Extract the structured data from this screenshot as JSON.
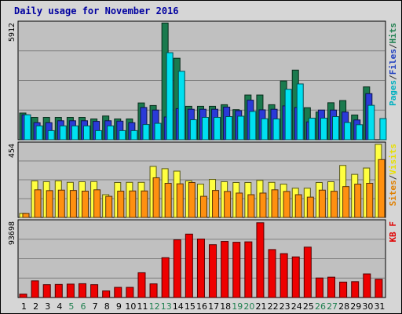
{
  "title": "Daily usage for November 2016",
  "chart_data": [
    {
      "type": "bar",
      "panel": "top",
      "ymax": 5912,
      "ymax_label": "5912",
      "legend": [
        {
          "label": "Pages",
          "color": "#00b0c0"
        },
        {
          "label": "/",
          "color": "#333333"
        },
        {
          "label": "Files",
          "color": "#2040c0"
        },
        {
          "label": "/",
          "color": "#333333"
        },
        {
          "label": "Hits",
          "color": "#208050"
        }
      ],
      "categories": [
        "1",
        "2",
        "3",
        "4",
        "5",
        "6",
        "7",
        "8",
        "9",
        "10",
        "11",
        "12",
        "13",
        "14",
        "15",
        "16",
        "17",
        "18",
        "19",
        "20",
        "21",
        "22",
        "23",
        "24",
        "25",
        "26",
        "27",
        "28",
        "29",
        "30",
        "31"
      ],
      "series": [
        {
          "name": "Hits",
          "color": "#1a7a4e",
          "values": [
            1350,
            1130,
            1130,
            1130,
            1130,
            1130,
            1050,
            1200,
            1050,
            1050,
            1860,
            1730,
            5900,
            4120,
            1690,
            1690,
            1690,
            1770,
            1520,
            2260,
            2260,
            1770,
            2970,
            3520,
            1620,
            1400,
            1870,
            1980,
            1250,
            2670,
            0
          ]
        },
        {
          "name": "Files",
          "color": "#2a3ad8",
          "values": [
            1260,
            860,
            860,
            960,
            960,
            960,
            930,
            960,
            940,
            860,
            1630,
            1500,
            1150,
            1570,
            1540,
            1540,
            1540,
            1650,
            1470,
            2000,
            1510,
            1540,
            1710,
            1630,
            900,
            1500,
            1500,
            1400,
            1000,
            2330,
            0
          ]
        },
        {
          "name": "Pages",
          "color": "#00e0f0",
          "values": [
            1260,
            700,
            460,
            700,
            700,
            700,
            460,
            700,
            460,
            460,
            770,
            830,
            4400,
            3460,
            1010,
            1130,
            1130,
            1170,
            1190,
            1430,
            1060,
            1050,
            2550,
            2820,
            1090,
            1090,
            1170,
            870,
            760,
            1740,
            1070
          ]
        }
      ]
    },
    {
      "type": "bar",
      "panel": "middle",
      "ymax": 454,
      "ymax_label": "454",
      "legend": [
        {
          "label": "Sites",
          "color": "#e08000"
        },
        {
          "label": "/",
          "color": "#333333"
        },
        {
          "label": "Visits",
          "color": "#e8e000"
        }
      ],
      "categories": [
        "1",
        "2",
        "3",
        "4",
        "5",
        "6",
        "7",
        "8",
        "9",
        "10",
        "11",
        "12",
        "13",
        "14",
        "15",
        "16",
        "17",
        "18",
        "19",
        "20",
        "21",
        "22",
        "23",
        "24",
        "25",
        "26",
        "27",
        "28",
        "29",
        "30",
        "31"
      ],
      "series": [
        {
          "name": "Visits",
          "color": "#ffff40",
          "values": [
            25,
            225,
            220,
            225,
            216,
            220,
            221,
            140,
            215,
            216,
            216,
            314,
            300,
            285,
            225,
            205,
            234,
            220,
            215,
            215,
            228,
            216,
            205,
            180,
            180,
            215,
            220,
            320,
            265,
            304,
            450
          ]
        },
        {
          "name": "Sites",
          "color": "#ff9010",
          "values": [
            25,
            170,
            165,
            168,
            166,
            162,
            170,
            130,
            162,
            163,
            163,
            244,
            210,
            207,
            215,
            130,
            166,
            160,
            150,
            140,
            150,
            170,
            160,
            140,
            125,
            168,
            161,
            190,
            205,
            210,
            356
          ]
        }
      ]
    },
    {
      "type": "bar",
      "panel": "bottom",
      "ymax": 93698,
      "ymax_label": "93698",
      "legend": [
        {
          "label": "KB F",
          "color": "#e00000"
        }
      ],
      "categories": [
        "1",
        "2",
        "3",
        "4",
        "5",
        "6",
        "7",
        "8",
        "9",
        "10",
        "11",
        "12",
        "13",
        "14",
        "15",
        "16",
        "17",
        "18",
        "19",
        "20",
        "21",
        "22",
        "23",
        "24",
        "25",
        "26",
        "27",
        "28",
        "29",
        "30",
        "31"
      ],
      "weekend_categories": [
        "5",
        "6",
        "12",
        "13",
        "19",
        "20",
        "26",
        "27"
      ],
      "series": [
        {
          "name": "KB F",
          "color": "#ee0000",
          "values": [
            4200,
            20500,
            15800,
            16100,
            16500,
            17000,
            15800,
            8100,
            12500,
            12500,
            30500,
            16800,
            49000,
            71000,
            78000,
            72000,
            65000,
            69000,
            68000,
            68500,
            92000,
            59000,
            54000,
            50000,
            62000,
            24000,
            25000,
            19000,
            19500,
            29000,
            22500
          ]
        }
      ]
    }
  ]
}
